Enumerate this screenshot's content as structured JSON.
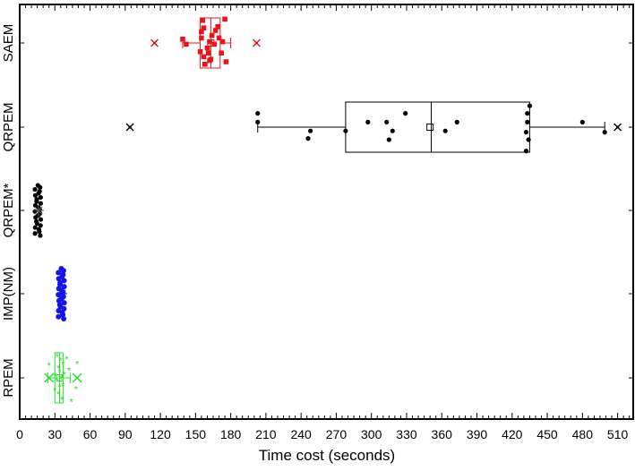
{
  "chart_data": {
    "type": "box",
    "orientation": "horizontal",
    "title": "",
    "xlabel": "Time cost (seconds)",
    "ylabel": "",
    "xlim": [
      0,
      515
    ],
    "xticks": [
      0,
      30,
      60,
      90,
      120,
      150,
      180,
      210,
      240,
      270,
      300,
      330,
      360,
      390,
      420,
      450,
      480,
      510
    ],
    "xminor_step": 5,
    "grid": false,
    "legend": null,
    "categories": [
      "SAEM",
      "QRPEM",
      "QRPEM*",
      "IMP(NM)",
      "RPEM"
    ],
    "series": [
      {
        "name": "SAEM",
        "color": "#e8141c",
        "marker": "square",
        "box": true,
        "q1": 154,
        "median": 163,
        "q3": 171,
        "mean": 163,
        "whisker_low": 139,
        "whisker_high": 180,
        "outliers": [
          115,
          202
        ],
        "points": [
          [
            139,
            0.15
          ],
          [
            142,
            -0.05
          ],
          [
            154,
            -0.35
          ],
          [
            155,
            0.2
          ],
          [
            155,
            0.45
          ],
          [
            156,
            0.9
          ],
          [
            157,
            0.6
          ],
          [
            157,
            -0.55
          ],
          [
            158,
            -0.85
          ],
          [
            160,
            -0.2
          ],
          [
            161,
            -0.4
          ],
          [
            162,
            0.05
          ],
          [
            162,
            -0.7
          ],
          [
            163,
            -0.65
          ],
          [
            164,
            0.3
          ],
          [
            166,
            -0.05
          ],
          [
            167,
            0.5
          ],
          [
            169,
            0.65
          ],
          [
            170,
            0.2
          ],
          [
            172,
            -0.4
          ],
          [
            173,
            0.05
          ],
          [
            175,
            0.95
          ],
          [
            176,
            -0.75
          ]
        ]
      },
      {
        "name": "QRPEM",
        "color": "#000000",
        "marker": "circle",
        "box": true,
        "q1": 278,
        "median": 351,
        "q3": 435,
        "mean": 350,
        "whisker_low": 203,
        "whisker_high": 499,
        "outliers": [
          94,
          510
        ],
        "points": [
          [
            203,
            0.55
          ],
          [
            203,
            0.2
          ],
          [
            248,
            -0.15
          ],
          [
            246,
            -0.45
          ],
          [
            278,
            -0.15
          ],
          [
            297,
            0.2
          ],
          [
            313,
            0.2
          ],
          [
            315,
            -0.5
          ],
          [
            318,
            -0.15
          ],
          [
            329,
            0.55
          ],
          [
            363,
            -0.15
          ],
          [
            373,
            0.2
          ],
          [
            432,
            -0.95
          ],
          [
            432,
            -0.2
          ],
          [
            433,
            0.2
          ],
          [
            433,
            0.55
          ],
          [
            434,
            -0.5
          ],
          [
            435,
            0.85
          ],
          [
            480,
            0.2
          ],
          [
            499,
            -0.2
          ]
        ]
      },
      {
        "name": "QRPEM*",
        "color": "#000000",
        "marker": "circle",
        "box": false,
        "mean": 16,
        "range": [
          13,
          18
        ],
        "spread_y": [
          -0.9,
          0.9
        ]
      },
      {
        "name": "IMP(NM)",
        "color": "#1414e8",
        "marker": "circle",
        "box": false,
        "mean": 36,
        "range": [
          33,
          38
        ],
        "spread_y": [
          -0.9,
          0.9
        ]
      },
      {
        "name": "RPEM",
        "color": "#28e028",
        "marker": "star",
        "box": true,
        "q1": 30,
        "median": 34,
        "q3": 37,
        "mean": 34,
        "whisker_low": 24,
        "whisker_high": 43,
        "outliers": [
          25,
          49
        ],
        "points": [
          [
            25,
            0.5
          ],
          [
            30,
            0.1
          ],
          [
            30,
            -0.5
          ],
          [
            32,
            0.85
          ],
          [
            32,
            -0.1
          ],
          [
            33,
            0.4
          ],
          [
            33,
            -0.65
          ],
          [
            34,
            0.25
          ],
          [
            34,
            -0.35
          ],
          [
            35,
            0.7
          ],
          [
            35,
            -0.05
          ],
          [
            36,
            -0.85
          ],
          [
            36,
            0.0
          ],
          [
            37,
            0.55
          ],
          [
            37,
            -0.3
          ],
          [
            38,
            0.15
          ],
          [
            40,
            0.75
          ],
          [
            42,
            0.3
          ],
          [
            44,
            -0.95
          ],
          [
            48,
            -0.45
          ],
          [
            49,
            0.55
          ]
        ]
      }
    ]
  },
  "axis": {
    "x_title": "Time cost (seconds)",
    "x_tick_labels": [
      "0",
      "30",
      "60",
      "90",
      "120",
      "150",
      "180",
      "210",
      "240",
      "270",
      "300",
      "330",
      "360",
      "390",
      "420",
      "450",
      "480",
      "510"
    ],
    "y_labels": [
      "SAEM",
      "QRPEM",
      "QRPEM*",
      "IMP(NM)",
      "RPEM"
    ]
  }
}
